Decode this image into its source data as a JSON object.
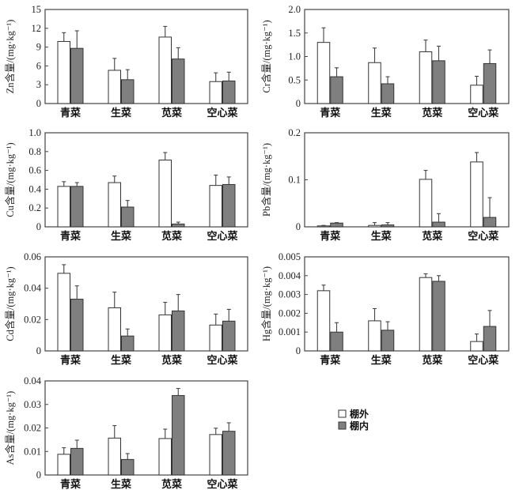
{
  "chart_data": [
    {
      "type": "bar",
      "element": "Zn",
      "ylabel": "Zn含量/(mg·kg⁻¹)",
      "categories": [
        "青菜",
        "生菜",
        "苋菜",
        "空心菜"
      ],
      "ylim": [
        0,
        15
      ],
      "yticks": [
        "0",
        "3",
        "6",
        "9",
        "12",
        "15"
      ],
      "ytick_values": [
        0,
        3,
        6,
        9,
        12,
        15
      ],
      "series": [
        {
          "name": "棚外",
          "values": [
            9.9,
            5.3,
            10.6,
            3.5
          ],
          "errors": [
            1.4,
            1.9,
            1.7,
            1.4
          ]
        },
        {
          "name": "棚内",
          "values": [
            8.8,
            3.8,
            7.1,
            3.6
          ],
          "errors": [
            2.8,
            1.6,
            1.8,
            1.4
          ]
        }
      ]
    },
    {
      "type": "bar",
      "element": "Cr",
      "ylabel": "Cr含量/(mg·kg⁻¹)",
      "categories": [
        "青菜",
        "生菜",
        "苋菜",
        "空心菜"
      ],
      "ylim": [
        0,
        2.0
      ],
      "yticks": [
        "0",
        "0.5",
        "1.0",
        "1.5",
        "2.0"
      ],
      "ytick_values": [
        0,
        0.5,
        1.0,
        1.5,
        2.0
      ],
      "series": [
        {
          "name": "棚外",
          "values": [
            1.3,
            0.87,
            1.1,
            0.39
          ],
          "errors": [
            0.31,
            0.31,
            0.25,
            0.19
          ]
        },
        {
          "name": "棚内",
          "values": [
            0.57,
            0.42,
            0.91,
            0.85
          ],
          "errors": [
            0.19,
            0.15,
            0.31,
            0.29
          ]
        }
      ]
    },
    {
      "type": "bar",
      "element": "Cu",
      "ylabel": "Cu含量/(mg·kg⁻¹)",
      "categories": [
        "青菜",
        "生菜",
        "苋菜",
        "空心菜"
      ],
      "ylim": [
        0,
        1.0
      ],
      "yticks": [
        "0",
        "0.2",
        "0.4",
        "0.6",
        "0.8",
        "1.0"
      ],
      "ytick_values": [
        0,
        0.2,
        0.4,
        0.6,
        0.8,
        1.0
      ],
      "series": [
        {
          "name": "棚外",
          "values": [
            0.43,
            0.47,
            0.71,
            0.44
          ],
          "errors": [
            0.05,
            0.07,
            0.08,
            0.11
          ]
        },
        {
          "name": "棚内",
          "values": [
            0.43,
            0.21,
            0.03,
            0.45
          ],
          "errors": [
            0.04,
            0.07,
            0.02,
            0.08
          ]
        }
      ]
    },
    {
      "type": "bar",
      "element": "Pb",
      "ylabel": "Pb含量/(mg·kg⁻¹)",
      "categories": [
        "青菜",
        "生菜",
        "苋菜",
        "空心菜"
      ],
      "ylim": [
        0,
        0.2
      ],
      "yticks": [
        "0",
        "0.1",
        "0.2"
      ],
      "ytick_values": [
        0,
        0.1,
        0.2
      ],
      "series": [
        {
          "name": "棚外",
          "values": [
            0.002,
            0.003,
            0.101,
            0.138
          ],
          "errors": [
            0.001,
            0.006,
            0.019,
            0.02
          ]
        },
        {
          "name": "棚内",
          "values": [
            0.008,
            0.004,
            0.01,
            0.02
          ],
          "errors": [
            0.001,
            0.005,
            0.018,
            0.042
          ]
        }
      ]
    },
    {
      "type": "bar",
      "element": "Cd",
      "ylabel": "Cd含量/(mg·kg⁻¹)",
      "categories": [
        "青菜",
        "生菜",
        "苋菜",
        "空心菜"
      ],
      "ylim": [
        0,
        0.06
      ],
      "yticks": [
        "0",
        "0.02",
        "0.04",
        "0.06"
      ],
      "ytick_values": [
        0,
        0.02,
        0.04,
        0.06
      ],
      "series": [
        {
          "name": "棚外",
          "values": [
            0.0495,
            0.0275,
            0.023,
            0.0165
          ],
          "errors": [
            0.0055,
            0.01,
            0.008,
            0.007
          ]
        },
        {
          "name": "棚内",
          "values": [
            0.033,
            0.0095,
            0.0255,
            0.019
          ],
          "errors": [
            0.0085,
            0.0045,
            0.0105,
            0.0075
          ]
        }
      ]
    },
    {
      "type": "bar",
      "element": "Hg",
      "ylabel": "Hg含量/(mg·kg⁻¹)",
      "categories": [
        "青菜",
        "生菜",
        "苋菜",
        "空心菜"
      ],
      "ylim": [
        0,
        0.005
      ],
      "yticks": [
        "0",
        "0.001",
        "0.002",
        "0.003",
        "0.004",
        "0.005"
      ],
      "ytick_values": [
        0,
        0.001,
        0.002,
        0.003,
        0.004,
        0.005
      ],
      "series": [
        {
          "name": "棚外",
          "values": [
            0.0032,
            0.0016,
            0.0039,
            0.0005
          ],
          "errors": [
            0.0003,
            0.00065,
            0.0002,
            0.0004
          ]
        },
        {
          "name": "棚内",
          "values": [
            0.001,
            0.0011,
            0.0037,
            0.0013
          ],
          "errors": [
            0.0005,
            0.00045,
            0.0003,
            0.00085
          ]
        }
      ]
    },
    {
      "type": "bar",
      "element": "As",
      "ylabel": "As含量/(mg·kg⁻¹)",
      "categories": [
        "青菜",
        "生菜",
        "苋菜",
        "空心菜"
      ],
      "ylim": [
        0,
        0.04
      ],
      "yticks": [
        "0",
        "0.01",
        "0.02",
        "0.03",
        "0.04"
      ],
      "ytick_values": [
        0,
        0.01,
        0.02,
        0.03,
        0.04
      ],
      "series": [
        {
          "name": "棚外",
          "values": [
            0.0088,
            0.0157,
            0.0155,
            0.0172
          ],
          "errors": [
            0.0028,
            0.0053,
            0.004,
            0.0027
          ]
        },
        {
          "name": "棚内",
          "values": [
            0.0113,
            0.0066,
            0.0338,
            0.0186
          ],
          "errors": [
            0.0035,
            0.0025,
            0.003,
            0.0036
          ]
        }
      ]
    }
  ],
  "legend": {
    "position": "right of bottom-left panel",
    "items": [
      {
        "label": "棚外",
        "color": "#ffffff"
      },
      {
        "label": "棚内",
        "color": "#808080"
      }
    ]
  },
  "colors": {
    "outside": "#ffffff",
    "inside": "#7f7f7f",
    "outline": "#333333"
  }
}
